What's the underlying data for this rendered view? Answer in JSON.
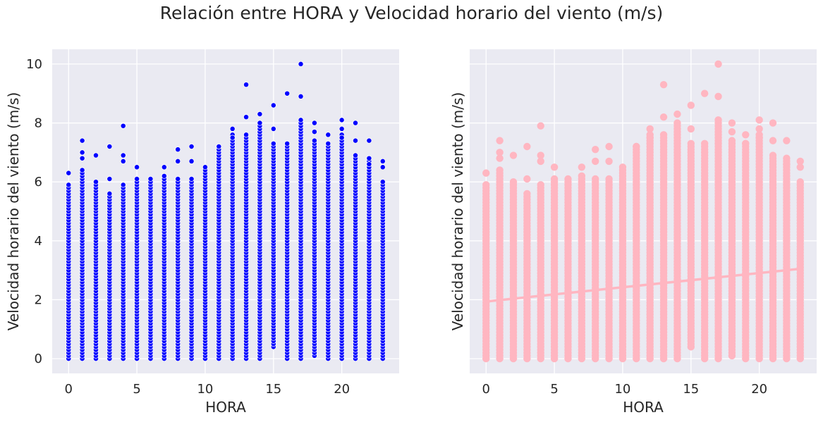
{
  "figure": {
    "title": "Relación entre HORA y Velocidad horario del viento (m/s)"
  },
  "colors": {
    "panel_bg": "#eaeaf2",
    "grid": "#ffffff",
    "scatter": "#0000ff",
    "regplot": "#ffb6c1"
  },
  "chart_data": [
    {
      "type": "scatter",
      "title": "",
      "xlabel": "HORA",
      "ylabel": "Velocidad horario del viento (m/s)",
      "xlim": [
        -1.2,
        24.2
      ],
      "ylim": [
        -0.5,
        10.5
      ],
      "xticks": [
        0,
        5,
        10,
        15,
        20
      ],
      "yticks": [
        0,
        2,
        4,
        6,
        8,
        10
      ],
      "grid": true,
      "marker_color": "#0000ff",
      "hours": [
        0,
        1,
        2,
        3,
        4,
        5,
        6,
        7,
        8,
        9,
        10,
        11,
        12,
        13,
        14,
        15,
        16,
        17,
        18,
        19,
        20,
        21,
        22,
        23
      ],
      "column_min": [
        0,
        0,
        0,
        0,
        0,
        0,
        0,
        0,
        0,
        0,
        0,
        0,
        0,
        0,
        0,
        0.4,
        0,
        0,
        0.1,
        0,
        0,
        0,
        0,
        0
      ],
      "column_max": [
        5.9,
        6.4,
        5.9,
        5.6,
        5.9,
        6.1,
        6.1,
        6.2,
        6.1,
        6.1,
        6.4,
        7.2,
        7.6,
        7.6,
        7.9,
        7.3,
        7.3,
        8.1,
        7.4,
        7.3,
        7.6,
        6.9,
        6.8,
        6.0
      ],
      "outliers": [
        [
          0,
          6.3
        ],
        [
          1,
          7.4
        ],
        [
          1,
          7.0
        ],
        [
          1,
          6.8
        ],
        [
          2,
          6.9
        ],
        [
          2,
          6.0
        ],
        [
          3,
          7.2
        ],
        [
          3,
          6.1
        ],
        [
          4,
          7.9
        ],
        [
          4,
          6.9
        ],
        [
          4,
          6.7
        ],
        [
          5,
          6.5
        ],
        [
          7,
          6.5
        ],
        [
          8,
          7.1
        ],
        [
          8,
          6.7
        ],
        [
          9,
          7.2
        ],
        [
          9,
          6.7
        ],
        [
          10,
          6.5
        ],
        [
          11,
          7.2
        ],
        [
          12,
          7.8
        ],
        [
          12,
          7.5
        ],
        [
          13,
          9.3
        ],
        [
          13,
          8.2
        ],
        [
          14,
          8.3
        ],
        [
          14,
          8.0
        ],
        [
          15,
          8.6
        ],
        [
          15,
          7.8
        ],
        [
          16,
          9.0
        ],
        [
          17,
          10.0
        ],
        [
          17,
          8.9
        ],
        [
          18,
          8.0
        ],
        [
          18,
          7.7
        ],
        [
          19,
          7.6
        ],
        [
          19,
          7.3
        ],
        [
          20,
          8.1
        ],
        [
          20,
          7.8
        ],
        [
          20,
          7.5
        ],
        [
          21,
          8.0
        ],
        [
          21,
          7.4
        ],
        [
          22,
          7.4
        ],
        [
          22,
          6.6
        ],
        [
          23,
          6.7
        ],
        [
          23,
          6.5
        ]
      ]
    },
    {
      "type": "scatter",
      "title": "",
      "xlabel": "HORA",
      "ylabel": "Velocidad horario del viento (m/s)",
      "xlim": [
        -1.2,
        24.2
      ],
      "ylim": [
        -0.5,
        10.5
      ],
      "xticks": [
        0,
        5,
        10,
        15,
        20
      ],
      "yticks": [
        0,
        2,
        4,
        6,
        8,
        10
      ],
      "shared_y": true,
      "grid": true,
      "marker_color": "#ffb6c1",
      "regression_line": {
        "x": [
          0,
          23
        ],
        "y": [
          1.94,
          3.05
        ]
      },
      "hours": [
        0,
        1,
        2,
        3,
        4,
        5,
        6,
        7,
        8,
        9,
        10,
        11,
        12,
        13,
        14,
        15,
        16,
        17,
        18,
        19,
        20,
        21,
        22,
        23
      ],
      "column_min": [
        0,
        0,
        0,
        0,
        0,
        0,
        0,
        0,
        0,
        0,
        0,
        0,
        0,
        0,
        0,
        0.4,
        0,
        0,
        0.1,
        0,
        0,
        0,
        0,
        0
      ],
      "column_max": [
        5.9,
        6.4,
        5.9,
        5.6,
        5.9,
        6.1,
        6.1,
        6.2,
        6.1,
        6.1,
        6.4,
        7.2,
        7.6,
        7.6,
        7.9,
        7.3,
        7.3,
        8.1,
        7.4,
        7.3,
        7.6,
        6.9,
        6.8,
        6.0
      ],
      "outliers": [
        [
          0,
          6.3
        ],
        [
          1,
          7.4
        ],
        [
          1,
          7.0
        ],
        [
          1,
          6.8
        ],
        [
          2,
          6.9
        ],
        [
          2,
          6.0
        ],
        [
          3,
          7.2
        ],
        [
          3,
          6.1
        ],
        [
          4,
          7.9
        ],
        [
          4,
          6.9
        ],
        [
          4,
          6.7
        ],
        [
          5,
          6.5
        ],
        [
          7,
          6.5
        ],
        [
          8,
          7.1
        ],
        [
          8,
          6.7
        ],
        [
          9,
          7.2
        ],
        [
          9,
          6.7
        ],
        [
          10,
          6.5
        ],
        [
          11,
          7.2
        ],
        [
          12,
          7.8
        ],
        [
          12,
          7.5
        ],
        [
          13,
          9.3
        ],
        [
          13,
          8.2
        ],
        [
          14,
          8.3
        ],
        [
          14,
          8.0
        ],
        [
          15,
          8.6
        ],
        [
          15,
          7.8
        ],
        [
          16,
          9.0
        ],
        [
          17,
          10.0
        ],
        [
          17,
          8.9
        ],
        [
          18,
          8.0
        ],
        [
          18,
          7.7
        ],
        [
          19,
          7.6
        ],
        [
          19,
          7.3
        ],
        [
          20,
          8.1
        ],
        [
          20,
          7.8
        ],
        [
          20,
          7.5
        ],
        [
          21,
          8.0
        ],
        [
          21,
          7.4
        ],
        [
          22,
          7.4
        ],
        [
          22,
          6.6
        ],
        [
          23,
          6.7
        ],
        [
          23,
          6.5
        ]
      ]
    }
  ]
}
